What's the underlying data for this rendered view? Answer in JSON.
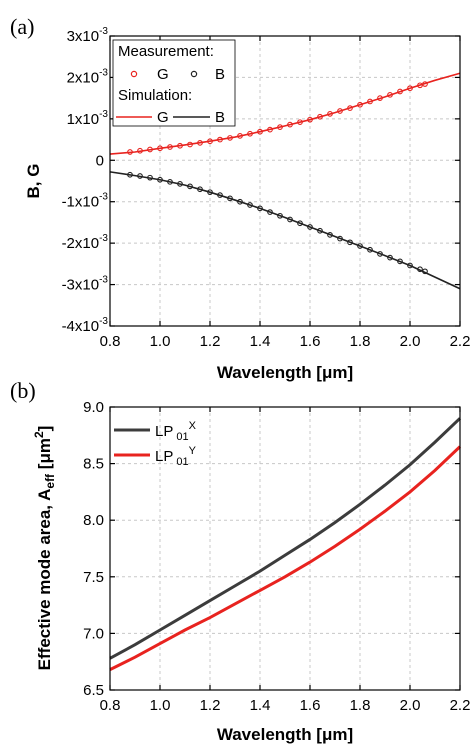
{
  "panels": {
    "a": {
      "label": "(a)"
    },
    "b": {
      "label": "(b)"
    }
  },
  "legend_a": {
    "measurement": "Measurement:",
    "simulation": "Simulation:",
    "g": "G",
    "b": "B"
  },
  "legend_b": {
    "x_base": "LP",
    "x_sub": "01",
    "x_sup": "X",
    "y_base": "LP",
    "y_sub": "01",
    "y_sup": "Y"
  },
  "colors": {
    "red": "#e8231f",
    "black": "#222222",
    "dark_gray": "#3c3c3c"
  },
  "chart_data": [
    {
      "type": "line",
      "panel": "a",
      "xlabel_main": "Wavelength [",
      "xlabel_unit": "μm",
      "xlabel_close": "]",
      "ylabel": "B, G",
      "xlim": [
        0.8,
        2.2
      ],
      "ylim": [
        -0.004,
        0.003
      ],
      "xticks": [
        0.8,
        1.0,
        1.2,
        1.4,
        1.6,
        1.8,
        2.0,
        2.2
      ],
      "xtick_labels": [
        "0.8",
        "1.0",
        "1.2",
        "1.4",
        "1.6",
        "1.8",
        "2.0",
        "2.2"
      ],
      "yticks": [
        {
          "value": 0.003,
          "mantissa": "3x10",
          "exp": "-3"
        },
        {
          "value": 0.002,
          "mantissa": "2x10",
          "exp": "-3"
        },
        {
          "value": 0.001,
          "mantissa": "1x10",
          "exp": "-3"
        },
        {
          "value": 0,
          "mantissa": "0",
          "exp": ""
        },
        {
          "value": -0.001,
          "mantissa": "-1x10",
          "exp": "-3"
        },
        {
          "value": -0.002,
          "mantissa": "-2x10",
          "exp": "-3"
        },
        {
          "value": -0.003,
          "mantissa": "-3x10",
          "exp": "-3"
        },
        {
          "value": -0.004,
          "mantissa": "-4x10",
          "exp": "-3"
        }
      ],
      "grid": true,
      "legend_position": "top-left",
      "series": [
        {
          "name": "G",
          "kind": "measurement",
          "color": "#e8231f",
          "x": [
            0.88,
            0.92,
            0.96,
            1.0,
            1.04,
            1.08,
            1.12,
            1.16,
            1.2,
            1.24,
            1.28,
            1.32,
            1.36,
            1.4,
            1.44,
            1.48,
            1.52,
            1.56,
            1.6,
            1.64,
            1.68,
            1.72,
            1.76,
            1.8,
            1.84,
            1.88,
            1.92,
            1.96,
            2.0,
            2.04,
            2.06
          ],
          "y": [
            0.0002,
            0.00023,
            0.00026,
            0.00029,
            0.00032,
            0.00035,
            0.00038,
            0.00042,
            0.00046,
            0.0005,
            0.00054,
            0.00059,
            0.00064,
            0.00069,
            0.00074,
            0.0008,
            0.00086,
            0.00092,
            0.00098,
            0.00105,
            0.00112,
            0.00119,
            0.00126,
            0.00134,
            0.00142,
            0.0015,
            0.00158,
            0.00166,
            0.00174,
            0.00181,
            0.00184
          ]
        },
        {
          "name": "B",
          "kind": "measurement",
          "color": "#222222",
          "x": [
            0.88,
            0.92,
            0.96,
            1.0,
            1.04,
            1.08,
            1.12,
            1.16,
            1.2,
            1.24,
            1.28,
            1.32,
            1.36,
            1.4,
            1.44,
            1.48,
            1.52,
            1.56,
            1.6,
            1.64,
            1.68,
            1.72,
            1.76,
            1.8,
            1.84,
            1.88,
            1.92,
            1.96,
            2.0,
            2.04,
            2.06
          ],
          "y": [
            -0.00035,
            -0.00038,
            -0.00042,
            -0.00047,
            -0.00052,
            -0.00057,
            -0.00063,
            -0.0007,
            -0.00077,
            -0.00084,
            -0.00092,
            -0.001,
            -0.00108,
            -0.00116,
            -0.00125,
            -0.00134,
            -0.00143,
            -0.00152,
            -0.00161,
            -0.0017,
            -0.0018,
            -0.00189,
            -0.00198,
            -0.00207,
            -0.00216,
            -0.00226,
            -0.00235,
            -0.00244,
            -0.00254,
            -0.00263,
            -0.00268
          ]
        },
        {
          "name": "G",
          "kind": "simulation",
          "color": "#e8231f",
          "x": [
            0.8,
            0.9,
            1.0,
            1.1,
            1.2,
            1.3,
            1.4,
            1.5,
            1.6,
            1.7,
            1.8,
            1.9,
            2.0,
            2.1,
            2.2
          ],
          "y": [
            0.00015,
            0.0002,
            0.00029,
            0.00037,
            0.00046,
            0.00056,
            0.00069,
            0.00083,
            0.00098,
            0.00115,
            0.00134,
            0.00153,
            0.00174,
            0.00193,
            0.0021
          ]
        },
        {
          "name": "B",
          "kind": "simulation",
          "color": "#222222",
          "x": [
            0.8,
            0.9,
            1.0,
            1.1,
            1.2,
            1.3,
            1.4,
            1.5,
            1.6,
            1.7,
            1.8,
            1.9,
            2.0,
            2.1,
            2.2
          ],
          "y": [
            -0.00028,
            -0.00037,
            -0.00047,
            -0.0006,
            -0.00077,
            -0.00096,
            -0.00116,
            -0.00138,
            -0.00161,
            -0.00184,
            -0.00207,
            -0.0023,
            -0.00254,
            -0.00282,
            -0.0031
          ]
        }
      ]
    },
    {
      "type": "line",
      "panel": "b",
      "xlabel_main": "Wavelength [",
      "xlabel_unit": "μm",
      "xlabel_close": "]",
      "ylabel_main": "Effective mode area, A",
      "ylabel_sub": "eff",
      "ylabel_unit": " [μm",
      "ylabel_sup": "2",
      "ylabel_close": "]",
      "xlim": [
        0.8,
        2.2
      ],
      "ylim": [
        6.5,
        9.0
      ],
      "xticks": [
        0.8,
        1.0,
        1.2,
        1.4,
        1.6,
        1.8,
        2.0,
        2.2
      ],
      "xtick_labels": [
        "0.8",
        "1.0",
        "1.2",
        "1.4",
        "1.6",
        "1.8",
        "2.0",
        "2.2"
      ],
      "yticks": [
        6.5,
        7.0,
        7.5,
        8.0,
        8.5,
        9.0
      ],
      "ytick_labels": [
        "6.5",
        "7.0",
        "7.5",
        "8.0",
        "8.5",
        "9.0"
      ],
      "grid": true,
      "legend_position": "top-left",
      "series": [
        {
          "name": "LP01X",
          "color": "#3c3c3c",
          "x": [
            0.8,
            0.9,
            1.0,
            1.1,
            1.2,
            1.3,
            1.4,
            1.5,
            1.6,
            1.7,
            1.8,
            1.9,
            2.0,
            2.1,
            2.2
          ],
          "y": [
            6.78,
            6.9,
            7.03,
            7.16,
            7.29,
            7.42,
            7.55,
            7.69,
            7.83,
            7.98,
            8.14,
            8.31,
            8.49,
            8.69,
            8.9
          ]
        },
        {
          "name": "LP01Y",
          "color": "#e8231f",
          "x": [
            0.8,
            0.9,
            1.0,
            1.1,
            1.2,
            1.3,
            1.4,
            1.5,
            1.6,
            1.7,
            1.8,
            1.9,
            2.0,
            2.1,
            2.2
          ],
          "y": [
            6.68,
            6.79,
            6.91,
            7.03,
            7.14,
            7.26,
            7.38,
            7.5,
            7.63,
            7.77,
            7.92,
            8.08,
            8.25,
            8.44,
            8.65
          ]
        }
      ]
    }
  ]
}
